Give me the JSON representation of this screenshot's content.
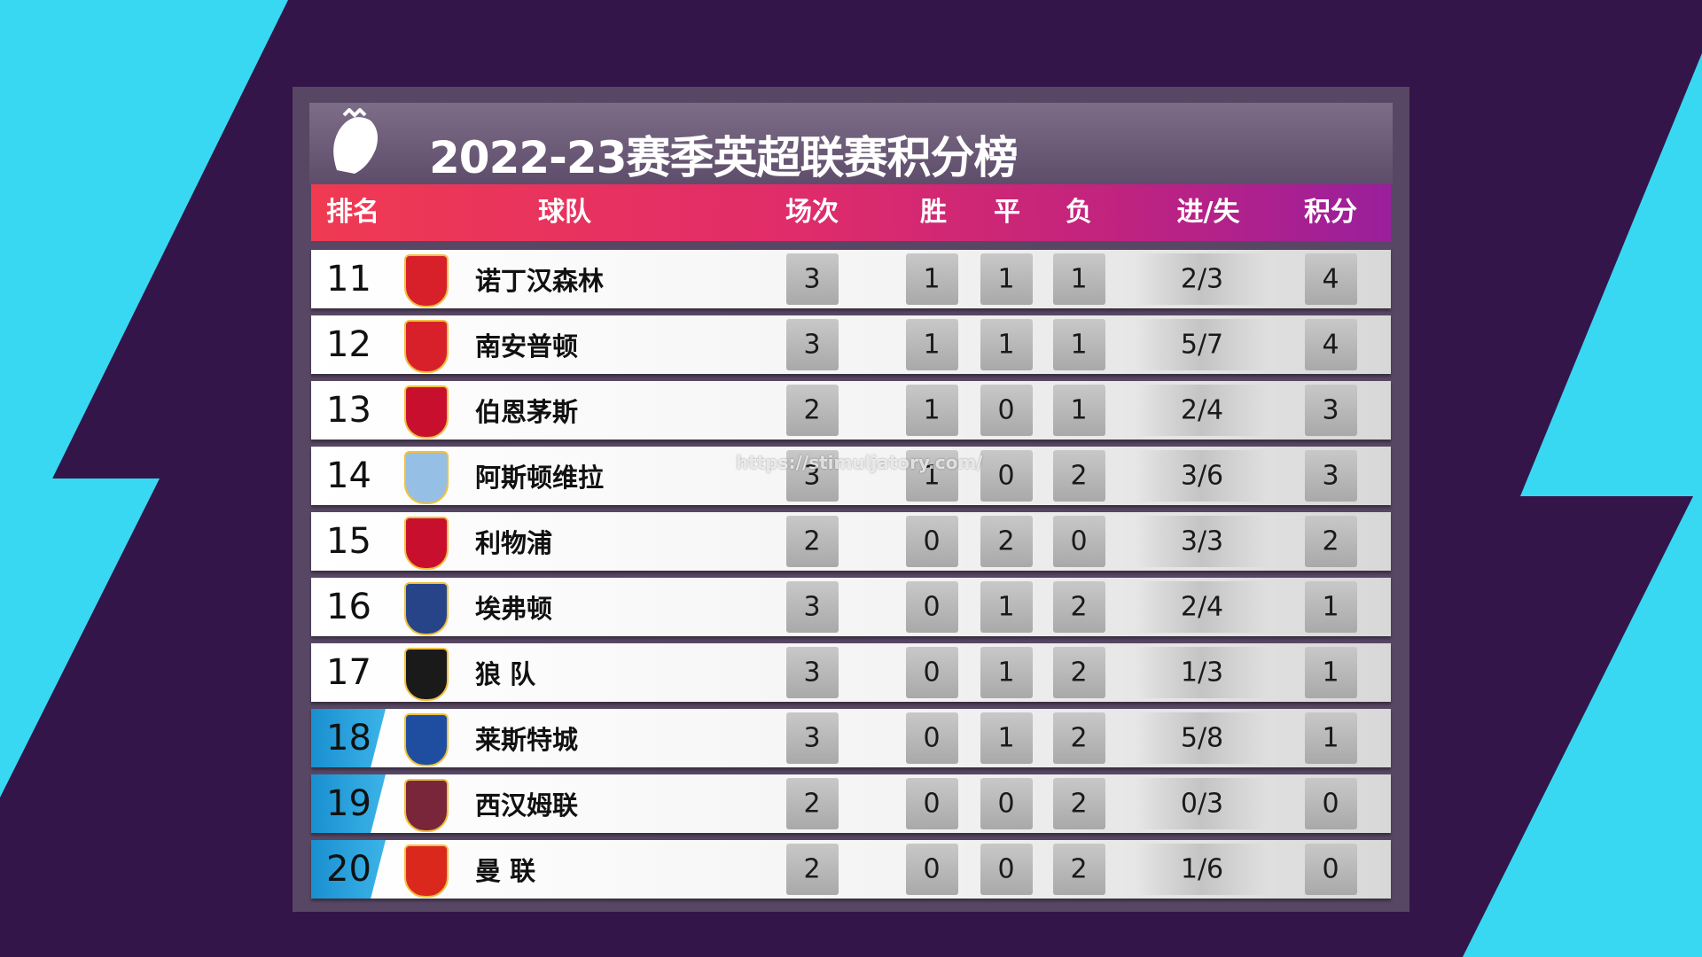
{
  "header": {
    "title": "2022-23赛季英超联赛积分榜"
  },
  "table": {
    "columns": [
      "排名",
      "球队",
      "场次",
      "胜",
      "平",
      "负",
      "进/失",
      "积分"
    ],
    "rows": [
      [
        "11",
        "诺丁汉森林",
        "3",
        "1",
        "1",
        "1",
        "2/3",
        "4"
      ],
      [
        "12",
        "南安普顿",
        "3",
        "1",
        "1",
        "1",
        "5/7",
        "4"
      ],
      [
        "13",
        "伯恩茅斯",
        "2",
        "1",
        "0",
        "1",
        "2/4",
        "3"
      ],
      [
        "14",
        "阿斯顿维拉",
        "3",
        "1",
        "0",
        "2",
        "3/6",
        "3"
      ],
      [
        "15",
        "利物浦",
        "2",
        "0",
        "2",
        "0",
        "3/3",
        "2"
      ],
      [
        "16",
        "埃弗顿",
        "3",
        "0",
        "1",
        "2",
        "2/4",
        "1"
      ],
      [
        "17",
        "狼 队",
        "3",
        "0",
        "1",
        "2",
        "1/3",
        "1"
      ],
      [
        "18",
        "莱斯特城",
        "3",
        "0",
        "1",
        "2",
        "5/8",
        "1"
      ],
      [
        "19",
        "西汉姆联",
        "2",
        "0",
        "0",
        "2",
        "0/3",
        "0"
      ],
      [
        "20",
        "曼 联",
        "2",
        "0",
        "0",
        "2",
        "1/6",
        "0"
      ]
    ]
  },
  "watermark": "https://stimuljatory.com/"
}
